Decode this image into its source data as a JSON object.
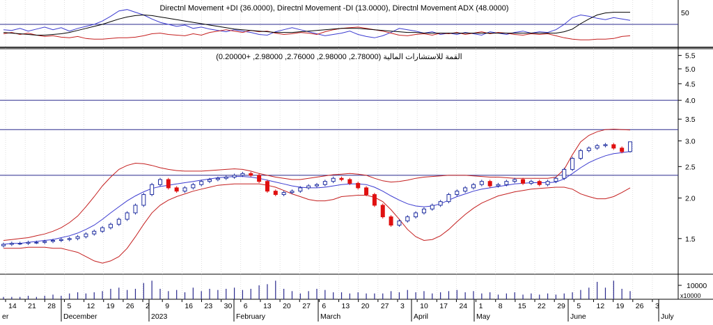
{
  "colors": {
    "background": "#ffffff",
    "grid": "#c8c8c8",
    "frame": "#000000",
    "candle_up": "#1f2ea0",
    "candle_down": "#e01010",
    "bollinger_outer": "#c41e1e",
    "bollinger_middle": "#3a3ad0",
    "di_plus": "#3a3ad0",
    "di_minus": "#c41e1e",
    "adx": "#000000",
    "hline": "#28288c",
    "volume": "#28288c"
  },
  "chart_data": [
    {
      "type": "line",
      "title": "Directnl Movement +DI (36.0000), Directnl Movement -DI (13.0000), Directnl Movement ADX (48.0000)",
      "y_tick_labels": [
        "50"
      ],
      "grid": true,
      "series": [
        {
          "name": "Directnl Movement +DI",
          "last": 36.0,
          "values": [
            22,
            21,
            24,
            20,
            23,
            26,
            22,
            25,
            20,
            24,
            27,
            30,
            35,
            42,
            50,
            52,
            48,
            44,
            38,
            33,
            30,
            27,
            29,
            24,
            26,
            23,
            21,
            19,
            22,
            20,
            18,
            15,
            14,
            19,
            22,
            25,
            22,
            19,
            16,
            13,
            15,
            17,
            20,
            15,
            12,
            10,
            13,
            18,
            24,
            22,
            20,
            17,
            19,
            15,
            17,
            15,
            18,
            16,
            14,
            19,
            17,
            15,
            18,
            20,
            17,
            19,
            18,
            22,
            30,
            40,
            44,
            42,
            39,
            37,
            40,
            38,
            36
          ]
        },
        {
          "name": "Directnl Movement -DI",
          "last": 13.0,
          "values": [
            16,
            18,
            15,
            17,
            14,
            12,
            13,
            11,
            10,
            12,
            9,
            8,
            8,
            9,
            10,
            10,
            11,
            13,
            16,
            17,
            15,
            14,
            13,
            16,
            14,
            18,
            20,
            22,
            20,
            18,
            21,
            19,
            20,
            17,
            15,
            16,
            18,
            17,
            15,
            19,
            22,
            24,
            25,
            26,
            24,
            22,
            20,
            17,
            14,
            13,
            15,
            16,
            14,
            17,
            16,
            18,
            15,
            17,
            19,
            16,
            18,
            17,
            15,
            14,
            16,
            15,
            16,
            13,
            10,
            8,
            7,
            7,
            8,
            8,
            9,
            12,
            13
          ]
        },
        {
          "name": "Directnl Movement ADX",
          "last": 48.0,
          "values": [
            18,
            17,
            16,
            15,
            14,
            14,
            15,
            16,
            18,
            21,
            24,
            27,
            30,
            34,
            38,
            41,
            43,
            44,
            43,
            41,
            39,
            37,
            35,
            33,
            31,
            29,
            27,
            25,
            23,
            22,
            21,
            20,
            19,
            18,
            18,
            18,
            19,
            20,
            21,
            22,
            23,
            24,
            24,
            24,
            23,
            22,
            21,
            20,
            19,
            18,
            18,
            17,
            17,
            17,
            17,
            17,
            17,
            17,
            17,
            17,
            17,
            17,
            17,
            17,
            17,
            17,
            17,
            17,
            19,
            23,
            31,
            38,
            44,
            47,
            48,
            48,
            48
          ]
        }
      ],
      "reference_level": 30
    },
    {
      "type": "candlestick",
      "title": "القمة للاستشارات المالية (2.78000, 2.98000, 2.76000, 2.98000, +0.20000)",
      "y_scale": "log",
      "ylim": [
        1.2,
        5.6
      ],
      "y_tick_labels": [
        "5.5",
        "5.0",
        "4.5",
        "4.0",
        "3.5",
        "3.0",
        "2.5",
        "2.0",
        "1.5"
      ],
      "y_ticks": [
        5.5,
        5.0,
        4.5,
        4.0,
        3.5,
        3.0,
        2.5,
        2.0,
        1.5
      ],
      "horizontal_levels": [
        4.0,
        3.25,
        2.35
      ],
      "indicators": [
        "Bollinger Bands"
      ],
      "last_ohlc": {
        "open": 2.78,
        "high": 2.98,
        "low": 2.76,
        "close": 2.98,
        "change": 0.2
      },
      "close": [
        1.44,
        1.45,
        1.45,
        1.46,
        1.46,
        1.47,
        1.48,
        1.49,
        1.5,
        1.52,
        1.55,
        1.58,
        1.62,
        1.66,
        1.72,
        1.8,
        1.9,
        2.05,
        2.2,
        2.28,
        2.15,
        2.1,
        2.15,
        2.2,
        2.25,
        2.28,
        2.3,
        2.32,
        2.35,
        2.38,
        2.35,
        2.25,
        2.1,
        2.05,
        2.08,
        2.1,
        2.15,
        2.18,
        2.2,
        2.25,
        2.3,
        2.28,
        2.22,
        2.15,
        2.05,
        1.9,
        1.75,
        1.65,
        1.7,
        1.75,
        1.8,
        1.85,
        1.9,
        1.95,
        2.05,
        2.1,
        2.15,
        2.2,
        2.25,
        2.18,
        2.2,
        2.25,
        2.28,
        2.22,
        2.25,
        2.2,
        2.25,
        2.3,
        2.45,
        2.65,
        2.8,
        2.85,
        2.9,
        2.92,
        2.85,
        2.78,
        2.98
      ],
      "bollinger_upper": [
        1.48,
        1.49,
        1.5,
        1.51,
        1.53,
        1.55,
        1.58,
        1.62,
        1.68,
        1.76,
        1.88,
        2.02,
        2.18,
        2.32,
        2.45,
        2.52,
        2.56,
        2.55,
        2.52,
        2.48,
        2.45,
        2.43,
        2.42,
        2.42,
        2.42,
        2.43,
        2.44,
        2.45,
        2.46,
        2.45,
        2.42,
        2.38,
        2.35,
        2.32,
        2.3,
        2.28,
        2.28,
        2.3,
        2.32,
        2.34,
        2.36,
        2.37,
        2.38,
        2.37,
        2.35,
        2.3,
        2.26,
        2.24,
        2.25,
        2.27,
        2.3,
        2.32,
        2.33,
        2.34,
        2.35,
        2.35,
        2.35,
        2.34,
        2.33,
        2.32,
        2.32,
        2.31,
        2.3,
        2.3,
        2.3,
        2.3,
        2.3,
        2.32,
        2.45,
        2.72,
        2.98,
        3.12,
        3.2,
        3.25,
        3.26,
        3.25,
        3.24
      ],
      "bollinger_middle": [
        1.44,
        1.45,
        1.45,
        1.46,
        1.47,
        1.48,
        1.49,
        1.51,
        1.53,
        1.56,
        1.6,
        1.65,
        1.72,
        1.8,
        1.88,
        1.96,
        2.03,
        2.09,
        2.14,
        2.17,
        2.19,
        2.21,
        2.23,
        2.25,
        2.27,
        2.29,
        2.31,
        2.32,
        2.33,
        2.33,
        2.32,
        2.3,
        2.27,
        2.24,
        2.21,
        2.18,
        2.16,
        2.15,
        2.15,
        2.16,
        2.18,
        2.2,
        2.21,
        2.21,
        2.2,
        2.16,
        2.1,
        2.03,
        1.97,
        1.92,
        1.89,
        1.88,
        1.89,
        1.92,
        1.97,
        2.02,
        2.06,
        2.1,
        2.13,
        2.15,
        2.17,
        2.19,
        2.21,
        2.22,
        2.23,
        2.23,
        2.23,
        2.24,
        2.29,
        2.38,
        2.48,
        2.57,
        2.64,
        2.7,
        2.74,
        2.76,
        2.78
      ],
      "bollinger_lower": [
        1.4,
        1.4,
        1.4,
        1.41,
        1.41,
        1.41,
        1.4,
        1.4,
        1.38,
        1.36,
        1.32,
        1.28,
        1.26,
        1.28,
        1.32,
        1.4,
        1.52,
        1.66,
        1.8,
        1.9,
        1.97,
        2.02,
        2.06,
        2.1,
        2.13,
        2.16,
        2.19,
        2.2,
        2.21,
        2.21,
        2.21,
        2.21,
        2.19,
        2.16,
        2.11,
        2.06,
        2.02,
        1.98,
        1.96,
        1.96,
        1.98,
        2.02,
        2.03,
        2.04,
        2.04,
        2.01,
        1.95,
        1.84,
        1.72,
        1.6,
        1.52,
        1.48,
        1.49,
        1.53,
        1.6,
        1.69,
        1.78,
        1.86,
        1.93,
        1.98,
        2.03,
        2.06,
        2.09,
        2.11,
        2.13,
        2.14,
        2.15,
        2.16,
        2.16,
        2.13,
        2.06,
        2.02,
        1.99,
        1.99,
        2.02,
        2.08,
        2.15
      ]
    },
    {
      "type": "bar",
      "title": "",
      "y_tick_labels": [
        "10000"
      ],
      "y_multiplier_label": "x10000",
      "values": [
        2,
        2,
        2,
        3,
        2,
        3,
        4,
        3,
        5,
        6,
        5,
        6,
        7,
        9,
        10,
        8,
        9,
        14,
        16,
        9,
        7,
        8,
        6,
        10,
        7,
        9,
        8,
        9,
        10,
        8,
        9,
        12,
        13,
        16,
        9,
        7,
        5,
        7,
        9,
        8,
        6,
        6,
        5,
        6,
        5,
        5,
        5,
        7,
        6,
        8,
        6,
        7,
        5,
        6,
        7,
        8,
        6,
        7,
        5,
        6,
        4,
        5,
        6,
        4,
        5,
        4,
        5,
        4,
        5,
        6,
        8,
        10,
        15,
        10,
        16,
        9,
        7
      ]
    }
  ],
  "x_axis": {
    "day_labels": [
      "14",
      "21",
      "28",
      "5",
      "12",
      "19",
      "26",
      "2",
      "9",
      "16",
      "23",
      "30",
      "6",
      "13",
      "20",
      "27",
      "6",
      "13",
      "20",
      "27",
      "3",
      "10",
      "17",
      "24",
      "1",
      "8",
      "15",
      "22",
      "29",
      "5",
      "12",
      "19",
      "26",
      "3"
    ],
    "month_labels": [
      "er",
      "December",
      "2023",
      "February",
      "March",
      "April",
      "May",
      "June",
      "July"
    ]
  }
}
